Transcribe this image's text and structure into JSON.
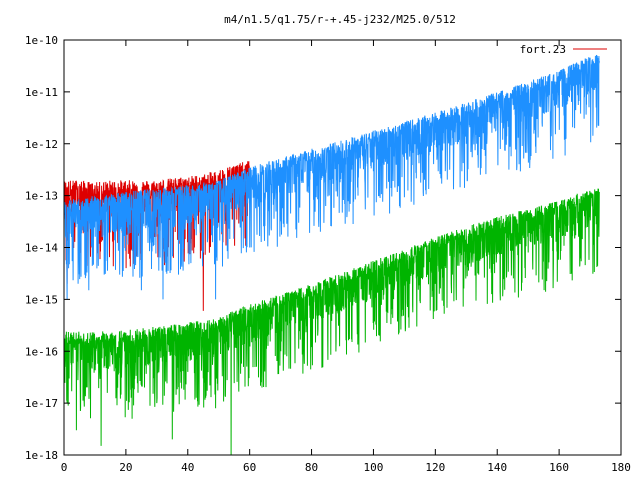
{
  "chart_data": {
    "type": "line",
    "title": "m4/n1.5/q1.75/r-+.45-j232/M25.0/512",
    "xlabel": "",
    "ylabel": "",
    "xlim": [
      0,
      180
    ],
    "ylim": [
      1e-18,
      1e-10
    ],
    "y_scale": "log",
    "x_ticks": [
      0,
      20,
      40,
      60,
      80,
      100,
      120,
      140,
      160,
      180
    ],
    "x_tick_labels": [
      "0",
      "20",
      "40",
      "60",
      "80",
      "100",
      "120",
      "140",
      "160",
      "180"
    ],
    "y_ticks": [
      1e-18,
      1e-17,
      1e-16,
      1e-15,
      1e-14,
      1e-13,
      1e-12,
      1e-11,
      1e-10
    ],
    "y_tick_labels": [
      "1e-18",
      "1e-17",
      "1e-16",
      "1e-15",
      "1e-14",
      "1e-13",
      "1e-12",
      "1e-11",
      "1e-10"
    ],
    "grid": false,
    "legend_position": "top-right",
    "series": [
      {
        "name": "fort.23",
        "color": "#dd0000",
        "x": [
          0,
          5,
          10,
          15,
          20,
          25,
          30,
          35,
          40,
          45,
          50,
          55,
          60
        ],
        "y": [
          1e-13,
          1e-13,
          9e-14,
          1e-13,
          1e-13,
          1e-13,
          1e-13,
          1.1e-13,
          1.2e-13,
          1.3e-13,
          1.6e-13,
          2e-13,
          2.4e-13
        ],
        "dips": [
          [
            1,
            2e-15
          ],
          [
            3,
            3e-14
          ],
          [
            9,
            1e-14
          ],
          [
            14,
            2e-14
          ],
          [
            29,
            3e-14
          ],
          [
            35,
            5e-14
          ],
          [
            41,
            1.2e-14
          ],
          [
            45,
            6e-16
          ],
          [
            50,
            3e-14
          ]
        ]
      },
      {
        "name": "",
        "color": "#1e90ff",
        "x": [
          0,
          10,
          20,
          30,
          40,
          50,
          60,
          80,
          100,
          120,
          140,
          160,
          173
        ],
        "y": [
          4e-14,
          5e-14,
          6e-14,
          7e-14,
          8e-14,
          1e-13,
          1.8e-13,
          4e-13,
          9e-13,
          2e-12,
          5e-12,
          1.3e-11,
          3e-11
        ],
        "dips": [
          [
            1,
            1e-15
          ],
          [
            3,
            2e-14
          ],
          [
            8,
            1.5e-15
          ],
          [
            13,
            3e-15
          ],
          [
            18,
            3e-15
          ],
          [
            21,
            2e-14
          ],
          [
            25,
            1.5e-15
          ],
          [
            32,
            1e-15
          ],
          [
            37,
            3e-15
          ],
          [
            41,
            5e-15
          ],
          [
            45,
            8e-15
          ],
          [
            49,
            1e-15
          ],
          [
            60,
            1e-14
          ],
          [
            66,
            5e-14
          ],
          [
            75,
            1e-13
          ],
          [
            86,
            2e-13
          ],
          [
            95,
            1e-13
          ],
          [
            105,
            3e-13
          ],
          [
            118,
            6e-13
          ],
          [
            130,
            1e-12
          ],
          [
            143,
            2e-12
          ],
          [
            155,
            4e-12
          ],
          [
            165,
            2e-12
          ],
          [
            172,
            5e-12
          ]
        ]
      },
      {
        "name": "",
        "color": "#00b400",
        "x": [
          0,
          10,
          20,
          30,
          40,
          50,
          60,
          80,
          100,
          120,
          140,
          160,
          173
        ],
        "y": [
          1.2e-16,
          1.2e-16,
          1.3e-16,
          1.5e-16,
          1.8e-16,
          2.3e-16,
          4e-16,
          1e-15,
          2.8e-15,
          8e-15,
          2e-14,
          4e-14,
          8e-14
        ],
        "dips": [
          [
            1,
            1e-17
          ],
          [
            4,
            3e-18
          ],
          [
            8,
            5e-17
          ],
          [
            12,
            1.5e-18
          ],
          [
            17,
            3e-17
          ],
          [
            22,
            5e-18
          ],
          [
            26,
            2e-17
          ],
          [
            30,
            1e-17
          ],
          [
            35,
            2e-18
          ],
          [
            40,
            4e-17
          ],
          [
            45,
            3e-17
          ],
          [
            49,
            8e-18
          ],
          [
            54,
            1e-18
          ],
          [
            58,
            5e-17
          ],
          [
            64,
            2e-17
          ],
          [
            72,
            8e-17
          ],
          [
            82,
            2e-16
          ],
          [
            93,
            4e-16
          ],
          [
            106,
            1e-15
          ],
          [
            120,
            2e-15
          ],
          [
            134,
            3e-15
          ],
          [
            150,
            8e-15
          ],
          [
            165,
            1.5e-14
          ]
        ]
      }
    ]
  }
}
